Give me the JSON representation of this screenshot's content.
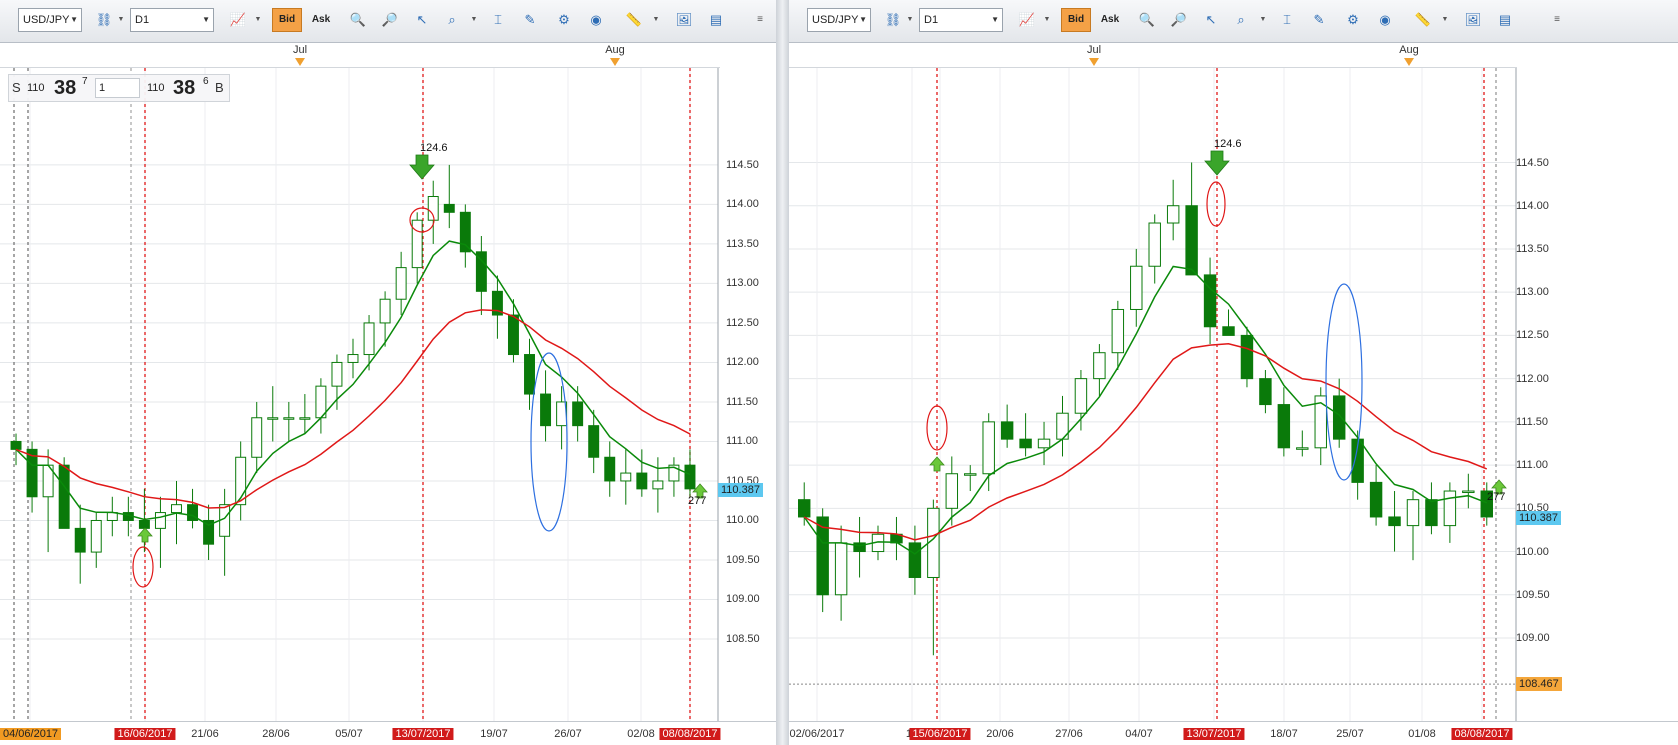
{
  "colors": {
    "bull": "#0a7a0a",
    "bear": "#0a7a0a",
    "ema_fast": "#0a8a0a",
    "ema_slow": "#e01818",
    "marker": "#e01818",
    "ellipse_blue": "#2d6fe0",
    "current_price_bg": "#5dc8f0",
    "level_bg": "#f4a63a",
    "red_date_bg": "#d11b1b",
    "orange_date_bg": "#f19a22"
  },
  "toolbar": {
    "symbol": "USD/JPY",
    "timeframe": "D1",
    "bid_label": "Bid",
    "ask_label": "Ask",
    "icons": [
      "chart-type-icon",
      "zoom-in-icon",
      "zoom-out-icon",
      "cursor-icon",
      "magnifier-icon",
      "crosshair-icon",
      "edit-icon",
      "indicators-icon",
      "globe-icon",
      "ruler-icon",
      "screenshot-icon",
      "layout-icon"
    ]
  },
  "quote": {
    "sell_label": "S",
    "sell_big": "110",
    "sell_pips": "38",
    "sell_frac": "7",
    "amount": "1",
    "buy_big": "110",
    "buy_pips": "38",
    "buy_frac": "6",
    "buy_label": "B"
  },
  "charts": [
    {
      "months": [
        {
          "label": "Jul"
        },
        {
          "label": "Aug"
        }
      ],
      "y_ticks": [
        "114.50",
        "114.00",
        "113.50",
        "113.00",
        "112.50",
        "112.00",
        "111.50",
        "111.00",
        "110.50",
        "110.00",
        "109.50",
        "109.00",
        "108.50"
      ],
      "current_price": "110.387",
      "x_labels": [
        {
          "text": "04/06/2017",
          "style": "orange"
        },
        {
          "text": "16/06/2017",
          "style": "red"
        },
        {
          "text": "21/06",
          "style": "plain"
        },
        {
          "text": "28/06",
          "style": "plain"
        },
        {
          "text": "05/07",
          "style": "plain"
        },
        {
          "text": "13/07/2017",
          "style": "red"
        },
        {
          "text": "19/07",
          "style": "plain"
        },
        {
          "text": "26/07",
          "style": "plain"
        },
        {
          "text": "02/08",
          "style": "plain"
        },
        {
          "text": "08/08/2017",
          "style": "red"
        }
      ],
      "annotations": {
        "top_label": "124.6",
        "bottom_label": "277"
      }
    },
    {
      "months": [
        {
          "label": "Jul"
        },
        {
          "label": "Aug"
        }
      ],
      "y_ticks": [
        "114.50",
        "114.00",
        "113.50",
        "113.00",
        "112.50",
        "112.00",
        "111.50",
        "111.00",
        "110.50",
        "110.00",
        "109.50",
        "109.00"
      ],
      "current_price": "110.387",
      "level_price": "108.467",
      "x_labels": [
        {
          "text": "02/06/2017",
          "style": "plain"
        },
        {
          "text": "14",
          "style": "plain"
        },
        {
          "text": "15/06/2017",
          "style": "red"
        },
        {
          "text": "20/06",
          "style": "plain"
        },
        {
          "text": "27/06",
          "style": "plain"
        },
        {
          "text": "04/07",
          "style": "plain"
        },
        {
          "text": "13/07/2017",
          "style": "red"
        },
        {
          "text": "18/07",
          "style": "plain"
        },
        {
          "text": "25/07",
          "style": "plain"
        },
        {
          "text": "01/08",
          "style": "plain"
        },
        {
          "text": "08/08/2017",
          "style": "red"
        }
      ],
      "annotations": {
        "top_label": "124.6",
        "bottom_label": "277"
      }
    }
  ],
  "chart_data": [
    {
      "type": "candlestick",
      "symbol": "USD/JPY",
      "timeframe": "D1",
      "ylim": [
        108.4,
        114.7
      ],
      "candles": [
        [
          111.0,
          111.1,
          110.7,
          110.9
        ],
        [
          110.9,
          111.0,
          110.1,
          110.3
        ],
        [
          110.3,
          110.9,
          109.6,
          110.7
        ],
        [
          110.7,
          110.8,
          109.9,
          109.9
        ],
        [
          109.9,
          110.2,
          109.2,
          109.6
        ],
        [
          109.6,
          110.1,
          109.4,
          110.0
        ],
        [
          110.0,
          110.3,
          109.8,
          110.1
        ],
        [
          110.1,
          110.3,
          109.8,
          110.0
        ],
        [
          110.0,
          110.4,
          109.6,
          109.9
        ],
        [
          109.9,
          110.3,
          109.4,
          110.1
        ],
        [
          110.1,
          110.5,
          109.7,
          110.2
        ],
        [
          110.2,
          110.4,
          109.9,
          110.0
        ],
        [
          110.0,
          110.2,
          109.5,
          109.7
        ],
        [
          109.8,
          110.4,
          109.3,
          110.2
        ],
        [
          110.2,
          111.0,
          110.0,
          110.8
        ],
        [
          110.8,
          111.5,
          110.6,
          111.3
        ],
        [
          111.3,
          111.7,
          111.0,
          111.3
        ],
        [
          111.3,
          111.5,
          111.0,
          111.3
        ],
        [
          111.3,
          111.6,
          111.1,
          111.3
        ],
        [
          111.3,
          111.8,
          111.1,
          111.7
        ],
        [
          111.7,
          112.1,
          111.4,
          112.0
        ],
        [
          112.0,
          112.3,
          111.8,
          112.1
        ],
        [
          112.1,
          112.6,
          111.9,
          112.5
        ],
        [
          112.5,
          112.9,
          112.2,
          112.8
        ],
        [
          112.8,
          113.4,
          112.6,
          113.2
        ],
        [
          113.2,
          113.9,
          113.0,
          113.8
        ],
        [
          113.8,
          114.3,
          113.5,
          114.1
        ],
        [
          114.0,
          114.5,
          113.7,
          113.9
        ],
        [
          113.9,
          114.0,
          113.2,
          113.4
        ],
        [
          113.4,
          113.6,
          112.6,
          112.9
        ],
        [
          112.9,
          113.1,
          112.3,
          112.6
        ],
        [
          112.6,
          112.8,
          112.0,
          112.1
        ],
        [
          112.1,
          112.3,
          111.4,
          111.6
        ],
        [
          111.6,
          111.9,
          111.0,
          111.2
        ],
        [
          111.2,
          111.7,
          110.9,
          111.5
        ],
        [
          111.5,
          111.7,
          111.0,
          111.2
        ],
        [
          111.2,
          111.4,
          110.6,
          110.8
        ],
        [
          110.8,
          111.0,
          110.3,
          110.5
        ],
        [
          110.5,
          110.9,
          110.2,
          110.6
        ],
        [
          110.6,
          110.9,
          110.3,
          110.4
        ],
        [
          110.4,
          110.8,
          110.1,
          110.5
        ],
        [
          110.5,
          110.8,
          110.3,
          110.7
        ],
        [
          110.7,
          110.9,
          110.3,
          110.4
        ]
      ],
      "ema_fast_label": "",
      "ema_slow_label": ""
    },
    {
      "type": "candlestick",
      "symbol": "USD/JPY",
      "timeframe": "D1",
      "ylim": [
        108.4,
        114.7
      ],
      "candles": [
        [
          110.6,
          110.8,
          110.3,
          110.4
        ],
        [
          110.4,
          110.5,
          109.3,
          109.5
        ],
        [
          109.5,
          110.3,
          109.2,
          110.1
        ],
        [
          110.1,
          110.4,
          109.7,
          110.0
        ],
        [
          110.0,
          110.3,
          109.9,
          110.2
        ],
        [
          110.2,
          110.4,
          109.9,
          110.1
        ],
        [
          110.1,
          110.3,
          109.5,
          109.7
        ],
        [
          109.7,
          110.6,
          108.8,
          110.5
        ],
        [
          110.5,
          111.1,
          110.3,
          110.9
        ],
        [
          110.9,
          111.0,
          110.7,
          110.9
        ],
        [
          110.9,
          111.6,
          110.7,
          111.5
        ],
        [
          111.5,
          111.7,
          111.2,
          111.3
        ],
        [
          111.3,
          111.6,
          111.1,
          111.2
        ],
        [
          111.2,
          111.5,
          111.0,
          111.3
        ],
        [
          111.3,
          111.8,
          111.1,
          111.6
        ],
        [
          111.6,
          112.1,
          111.4,
          112.0
        ],
        [
          112.0,
          112.4,
          111.8,
          112.3
        ],
        [
          112.3,
          112.9,
          112.1,
          112.8
        ],
        [
          112.8,
          113.5,
          112.6,
          113.3
        ],
        [
          113.3,
          113.9,
          113.1,
          113.8
        ],
        [
          113.8,
          114.3,
          113.6,
          114.0
        ],
        [
          114.0,
          114.5,
          113.2,
          113.2
        ],
        [
          113.2,
          113.4,
          112.4,
          112.6
        ],
        [
          112.6,
          112.8,
          112.5,
          112.5
        ],
        [
          112.5,
          112.6,
          111.9,
          112.0
        ],
        [
          112.0,
          112.1,
          111.6,
          111.7
        ],
        [
          111.7,
          111.9,
          111.1,
          111.2
        ],
        [
          111.2,
          111.4,
          111.1,
          111.2
        ],
        [
          111.2,
          111.9,
          111.0,
          111.8
        ],
        [
          111.8,
          112.0,
          111.2,
          111.3
        ],
        [
          111.3,
          111.4,
          110.6,
          110.8
        ],
        [
          110.8,
          111.0,
          110.3,
          110.4
        ],
        [
          110.4,
          110.7,
          110.0,
          110.3
        ],
        [
          110.3,
          110.7,
          109.9,
          110.6
        ],
        [
          110.6,
          110.8,
          110.2,
          110.3
        ],
        [
          110.3,
          110.8,
          110.1,
          110.7
        ],
        [
          110.7,
          110.9,
          110.5,
          110.7
        ],
        [
          110.7,
          110.8,
          110.3,
          110.4
        ]
      ],
      "ema_fast_label": "",
      "ema_slow_label": ""
    }
  ]
}
